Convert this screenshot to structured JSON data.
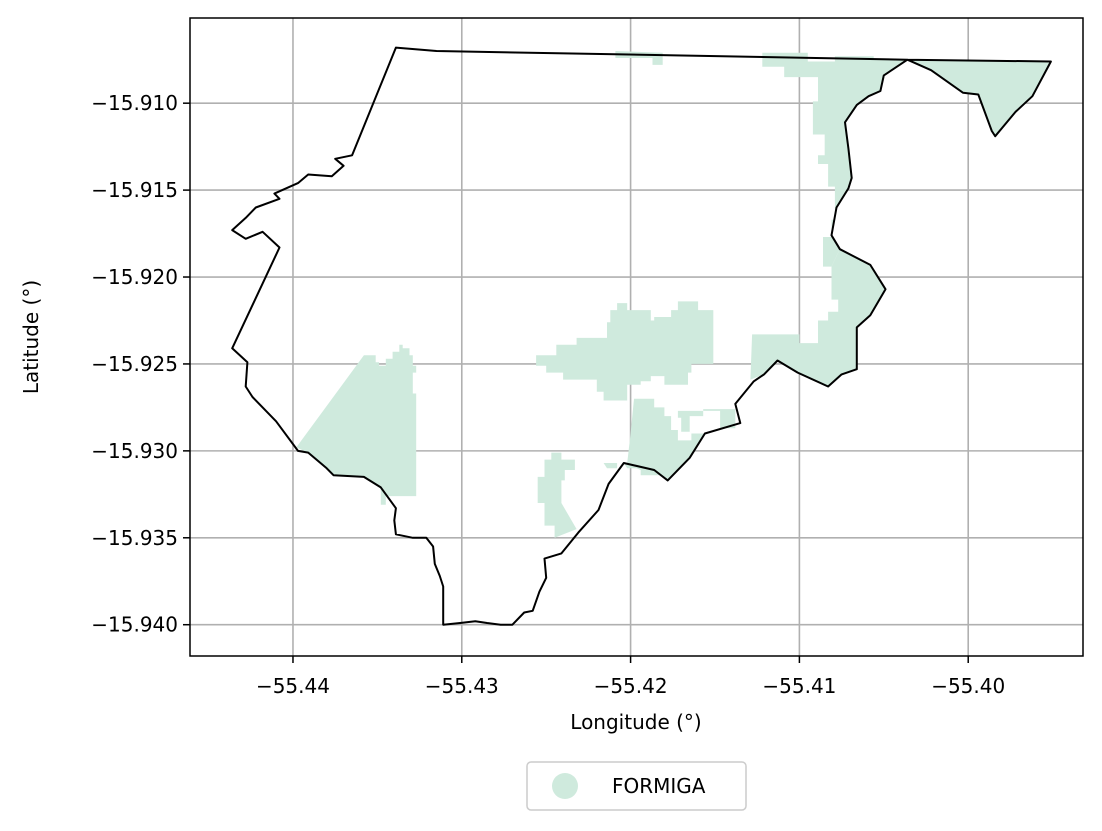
{
  "chart_data": {
    "type": "map",
    "xlabel": "Longitude (°)",
    "ylabel": "Latitude (°)",
    "xlim": [
      -55.4461,
      -55.3932
    ],
    "ylim": [
      -15.9418,
      -15.9051
    ],
    "grid": true,
    "x_ticks": [
      {
        "value": -55.44,
        "label": "−55.44"
      },
      {
        "value": -55.43,
        "label": "−55.43"
      },
      {
        "value": -55.42,
        "label": "−55.42"
      },
      {
        "value": -55.41,
        "label": "−55.41"
      },
      {
        "value": -55.4,
        "label": "−55.40"
      }
    ],
    "y_ticks": [
      {
        "value": -15.91,
        "label": "−15.910"
      },
      {
        "value": -15.915,
        "label": "−15.915"
      },
      {
        "value": -15.92,
        "label": "−15.920"
      },
      {
        "value": -15.925,
        "label": "−15.925"
      },
      {
        "value": -15.93,
        "label": "−15.930"
      },
      {
        "value": -15.935,
        "label": "−15.935"
      },
      {
        "value": -15.94,
        "label": "−15.940"
      }
    ],
    "legend": {
      "placement": "bottom-center",
      "entries": [
        {
          "label": "FORMIGA",
          "color": "#cfeadd"
        }
      ]
    },
    "fill_color": "#cfeadd",
    "boundary_color": "#000000",
    "boundary": [
      [
        -55.4339,
        -15.9068
      ],
      [
        -55.4315,
        -15.907
      ],
      [
        -55.4036,
        -15.9075
      ],
      [
        -55.3951,
        -15.9076
      ],
      [
        -55.3962,
        -15.9096
      ],
      [
        -55.3972,
        -15.9105
      ],
      [
        -55.3984,
        -15.9119
      ],
      [
        -55.3986,
        -15.9116
      ],
      [
        -55.3994,
        -15.9095
      ],
      [
        -55.4003,
        -15.9094
      ],
      [
        -55.4022,
        -15.9081
      ],
      [
        -55.4036,
        -15.9075
      ],
      [
        -55.405,
        -15.9084
      ],
      [
        -55.4052,
        -15.9093
      ],
      [
        -55.4059,
        -15.9096
      ],
      [
        -55.4066,
        -15.9101
      ],
      [
        -55.4073,
        -15.9111
      ],
      [
        -55.4071,
        -15.9126
      ],
      [
        -55.4069,
        -15.9143
      ],
      [
        -55.4071,
        -15.9149
      ],
      [
        -55.4078,
        -15.916
      ],
      [
        -55.4081,
        -15.9176
      ],
      [
        -55.4076,
        -15.9184
      ],
      [
        -55.4058,
        -15.9193
      ],
      [
        -55.4049,
        -15.9207
      ],
      [
        -55.4058,
        -15.9222
      ],
      [
        -55.4066,
        -15.9229
      ],
      [
        -55.4066,
        -15.9253
      ],
      [
        -55.4075,
        -15.9256
      ],
      [
        -55.4083,
        -15.9263
      ],
      [
        -55.4101,
        -15.9255
      ],
      [
        -55.4113,
        -15.9248
      ],
      [
        -55.4121,
        -15.9256
      ],
      [
        -55.4127,
        -15.926
      ],
      [
        -55.4138,
        -15.9273
      ],
      [
        -55.4135,
        -15.9284
      ],
      [
        -55.4156,
        -15.929
      ],
      [
        -55.4165,
        -15.9304
      ],
      [
        -55.4178,
        -15.9317
      ],
      [
        -55.4186,
        -15.9311
      ],
      [
        -55.4204,
        -15.9307
      ],
      [
        -55.4213,
        -15.9319
      ],
      [
        -55.4219,
        -15.9334
      ],
      [
        -55.4231,
        -15.9347
      ],
      [
        -55.4241,
        -15.9359
      ],
      [
        -55.4251,
        -15.9362
      ],
      [
        -55.425,
        -15.9373
      ],
      [
        -55.4254,
        -15.9381
      ],
      [
        -55.4258,
        -15.9392
      ],
      [
        -55.4263,
        -15.9393
      ],
      [
        -55.427,
        -15.94
      ],
      [
        -55.4277,
        -15.94
      ],
      [
        -55.4285,
        -15.9399
      ],
      [
        -55.4292,
        -15.9398
      ],
      [
        -55.4301,
        -15.9399
      ],
      [
        -55.4311,
        -15.94
      ],
      [
        -55.4311,
        -15.939
      ],
      [
        -55.4311,
        -15.9378
      ],
      [
        -55.4313,
        -15.9372
      ],
      [
        -55.4316,
        -15.9365
      ],
      [
        -55.4317,
        -15.9355
      ],
      [
        -55.4321,
        -15.935
      ],
      [
        -55.4329,
        -15.935
      ],
      [
        -55.4339,
        -15.9348
      ],
      [
        -55.434,
        -15.934
      ],
      [
        -55.4339,
        -15.9333
      ],
      [
        -55.4348,
        -15.9321
      ],
      [
        -55.4358,
        -15.9315
      ],
      [
        -55.4376,
        -15.9314
      ],
      [
        -55.438,
        -15.931
      ],
      [
        -55.4391,
        -15.9301
      ],
      [
        -55.4397,
        -15.93
      ],
      [
        -55.441,
        -15.9283
      ],
      [
        -55.4424,
        -15.9269
      ],
      [
        -55.4428,
        -15.9263
      ],
      [
        -55.4427,
        -15.9249
      ],
      [
        -55.4436,
        -15.9241
      ],
      [
        -55.4408,
        -15.9183
      ],
      [
        -55.4418,
        -15.9174
      ],
      [
        -55.4428,
        -15.9178
      ],
      [
        -55.4436,
        -15.9173
      ],
      [
        -55.4428,
        -15.9166
      ],
      [
        -55.4422,
        -15.916
      ],
      [
        -55.4408,
        -15.9155
      ],
      [
        -55.4411,
        -15.9152
      ],
      [
        -55.4397,
        -15.9146
      ],
      [
        -55.4391,
        -15.9141
      ],
      [
        -55.4377,
        -15.9142
      ],
      [
        -55.437,
        -15.9136
      ],
      [
        -55.4375,
        -15.9132
      ],
      [
        -55.4365,
        -15.913
      ],
      [
        -55.4339,
        -15.9068
      ]
    ],
    "regions": [
      [
        [
          -55.4398,
          -15.9298
        ],
        [
          -55.4358,
          -15.9245
        ],
        [
          -55.4351,
          -15.9245
        ],
        [
          -55.4351,
          -15.9249
        ],
        [
          -55.4349,
          -15.9249
        ],
        [
          -55.4349,
          -15.9251
        ],
        [
          -55.4345,
          -15.9251
        ],
        [
          -55.4345,
          -15.9247
        ],
        [
          -55.4341,
          -15.9247
        ],
        [
          -55.4341,
          -15.9243
        ],
        [
          -55.4337,
          -15.9243
        ],
        [
          -55.4337,
          -15.9239
        ],
        [
          -55.4335,
          -15.9239
        ],
        [
          -55.4335,
          -15.9241
        ],
        [
          -55.4331,
          -15.9241
        ],
        [
          -55.4331,
          -15.9245
        ],
        [
          -55.4329,
          -15.9245
        ],
        [
          -55.4329,
          -15.9251
        ],
        [
          -55.4327,
          -15.9251
        ],
        [
          -55.4327,
          -15.9255
        ],
        [
          -55.4329,
          -15.9255
        ],
        [
          -55.4329,
          -15.9267
        ],
        [
          -55.4327,
          -15.9267
        ],
        [
          -55.4327,
          -15.9326
        ],
        [
          -55.4345,
          -15.9326
        ],
        [
          -55.4345,
          -15.9331
        ],
        [
          -55.4348,
          -15.9331
        ],
        [
          -55.4348,
          -15.9321
        ],
        [
          -55.4358,
          -15.9315
        ],
        [
          -55.4376,
          -15.9314
        ],
        [
          -55.4391,
          -15.9301
        ],
        [
          -55.4398,
          -15.9298
        ]
      ],
      [
        [
          -55.4204,
          -15.9307
        ],
        [
          -55.4202,
          -15.931
        ],
        [
          -55.4196,
          -15.931
        ],
        [
          -55.4196,
          -15.9307
        ],
        [
          -55.4204,
          -15.9307
        ]
      ],
      [
        [
          -55.4216,
          -15.9307
        ],
        [
          -55.4214,
          -15.931
        ],
        [
          -55.4208,
          -15.931
        ],
        [
          -55.4208,
          -15.9307
        ],
        [
          -55.4216,
          -15.9307
        ]
      ],
      [
        [
          -55.4208,
          -15.9307
        ],
        [
          -55.4202,
          -15.9307
        ],
        [
          -55.42,
          -15.929
        ],
        [
          -55.4198,
          -15.927
        ],
        [
          -55.4186,
          -15.927
        ],
        [
          -55.4186,
          -15.9275
        ],
        [
          -55.418,
          -15.9275
        ],
        [
          -55.418,
          -15.928
        ],
        [
          -55.4176,
          -15.928
        ],
        [
          -55.4176,
          -15.9288
        ],
        [
          -55.4172,
          -15.9288
        ],
        [
          -55.4172,
          -15.9294
        ],
        [
          -55.4164,
          -15.9294
        ],
        [
          -55.4164,
          -15.929
        ],
        [
          -55.4156,
          -15.929
        ],
        [
          -55.4165,
          -15.9304
        ],
        [
          -55.4178,
          -15.9317
        ],
        [
          -55.4186,
          -15.9311
        ],
        [
          -55.418,
          -15.9311
        ],
        [
          -55.418,
          -15.9314
        ],
        [
          -55.4194,
          -15.9314
        ],
        [
          -55.4194,
          -15.9311
        ],
        [
          -55.4204,
          -15.9307
        ],
        [
          -55.4208,
          -15.9307
        ]
      ],
      [
        [
          -55.4232,
          -15.9345
        ],
        [
          -55.4241,
          -15.933
        ],
        [
          -55.4241,
          -15.9317
        ],
        [
          -55.4239,
          -15.9317
        ],
        [
          -55.4239,
          -15.9311
        ],
        [
          -55.4233,
          -15.9311
        ],
        [
          -55.4233,
          -15.9305
        ],
        [
          -55.4241,
          -15.9305
        ],
        [
          -55.4241,
          -15.9301
        ],
        [
          -55.4247,
          -15.9301
        ],
        [
          -55.4247,
          -15.9305
        ],
        [
          -55.4251,
          -15.9305
        ],
        [
          -55.4251,
          -15.9315
        ],
        [
          -55.4255,
          -15.9315
        ],
        [
          -55.4255,
          -15.933
        ],
        [
          -55.4251,
          -15.933
        ],
        [
          -55.4251,
          -15.9343
        ],
        [
          -55.4245,
          -15.9343
        ],
        [
          -55.4245,
          -15.935
        ],
        [
          -55.4232,
          -15.9345
        ]
      ],
      [
        [
          -55.417,
          -15.9289
        ],
        [
          -55.417,
          -15.9281
        ],
        [
          -55.4172,
          -15.9281
        ],
        [
          -55.4172,
          -15.9277
        ],
        [
          -55.4157,
          -15.9277
        ],
        [
          -55.4147,
          -15.9277
        ],
        [
          -55.4147,
          -15.9287
        ],
        [
          -55.4138,
          -15.9287
        ],
        [
          -55.4138,
          -15.9276
        ],
        [
          -55.4157,
          -15.9276
        ],
        [
          -55.4157,
          -15.928
        ],
        [
          -55.4165,
          -15.928
        ],
        [
          -55.4165,
          -15.9289
        ],
        [
          -55.417,
          -15.9289
        ]
      ],
      [
        [
          -55.4256,
          -15.9245
        ],
        [
          -55.4244,
          -15.9245
        ],
        [
          -55.4244,
          -15.9239
        ],
        [
          -55.4232,
          -15.9239
        ],
        [
          -55.4232,
          -15.9235
        ],
        [
          -55.4214,
          -15.9235
        ],
        [
          -55.4214,
          -15.9226
        ],
        [
          -55.4212,
          -15.9226
        ],
        [
          -55.4212,
          -15.9219
        ],
        [
          -55.4208,
          -15.9219
        ],
        [
          -55.4208,
          -15.9215
        ],
        [
          -55.4202,
          -15.9215
        ],
        [
          -55.4202,
          -15.9219
        ],
        [
          -55.4188,
          -15.9219
        ],
        [
          -55.4188,
          -15.9225
        ],
        [
          -55.4186,
          -15.9225
        ],
        [
          -55.4186,
          -15.9223
        ],
        [
          -55.4176,
          -15.9223
        ],
        [
          -55.4176,
          -15.9219
        ],
        [
          -55.4172,
          -15.9219
        ],
        [
          -55.4172,
          -15.9214
        ],
        [
          -55.416,
          -15.9214
        ],
        [
          -55.416,
          -15.9219
        ],
        [
          -55.4151,
          -15.9219
        ],
        [
          -55.4151,
          -15.925
        ],
        [
          -55.4164,
          -15.925
        ],
        [
          -55.4164,
          -15.9255
        ],
        [
          -55.4166,
          -15.9255
        ],
        [
          -55.4166,
          -15.9262
        ],
        [
          -55.418,
          -15.9262
        ],
        [
          -55.418,
          -15.9257
        ],
        [
          -55.4188,
          -15.9257
        ],
        [
          -55.4188,
          -15.926
        ],
        [
          -55.4194,
          -15.926
        ],
        [
          -55.4194,
          -15.9262
        ],
        [
          -55.4202,
          -15.9262
        ],
        [
          -55.4202,
          -15.9271
        ],
        [
          -55.4216,
          -15.9271
        ],
        [
          -55.4216,
          -15.9266
        ],
        [
          -55.422,
          -15.9266
        ],
        [
          -55.422,
          -15.9259
        ],
        [
          -55.424,
          -15.9259
        ],
        [
          -55.424,
          -15.9255
        ],
        [
          -55.425,
          -15.9255
        ],
        [
          -55.425,
          -15.9251
        ],
        [
          -55.4256,
          -15.9251
        ],
        [
          -55.4256,
          -15.9245
        ]
      ],
      [
        [
          -55.4129,
          -15.9259
        ],
        [
          -55.4128,
          -15.9233
        ],
        [
          -55.41,
          -15.9233
        ],
        [
          -55.41,
          -15.9238
        ],
        [
          -55.4089,
          -15.9238
        ],
        [
          -55.4089,
          -15.9225
        ],
        [
          -55.4083,
          -15.9225
        ],
        [
          -55.4083,
          -15.922
        ],
        [
          -55.4077,
          -15.922
        ],
        [
          -55.4077,
          -15.9213
        ],
        [
          -55.4081,
          -15.9213
        ],
        [
          -55.4081,
          -15.9194
        ],
        [
          -55.4076,
          -15.9184
        ],
        [
          -55.4058,
          -15.9193
        ],
        [
          -55.4049,
          -15.9207
        ],
        [
          -55.4058,
          -15.9222
        ],
        [
          -55.4066,
          -15.9229
        ],
        [
          -55.4066,
          -15.9253
        ],
        [
          -55.4075,
          -15.9256
        ],
        [
          -55.4083,
          -15.9263
        ],
        [
          -55.4101,
          -15.9255
        ],
        [
          -55.4113,
          -15.9248
        ],
        [
          -55.4121,
          -15.9256
        ],
        [
          -55.4129,
          -15.9259
        ]
      ],
      [
        [
          -55.4076,
          -15.9184
        ],
        [
          -55.4081,
          -15.9176
        ],
        [
          -55.4078,
          -15.916
        ],
        [
          -55.4071,
          -15.9149
        ],
        [
          -55.4069,
          -15.9143
        ],
        [
          -55.4071,
          -15.9126
        ],
        [
          -55.4073,
          -15.9111
        ],
        [
          -55.4066,
          -15.9101
        ],
        [
          -55.4059,
          -15.9096
        ],
        [
          -55.4052,
          -15.9093
        ],
        [
          -55.405,
          -15.9084
        ],
        [
          -55.4036,
          -15.9075
        ],
        [
          -55.4056,
          -15.9075
        ],
        [
          -55.4056,
          -15.9073
        ],
        [
          -55.4079,
          -15.9073
        ],
        [
          -55.4079,
          -15.9076
        ],
        [
          -55.4095,
          -15.9076
        ],
        [
          -55.4095,
          -15.9071
        ],
        [
          -55.4122,
          -15.9071
        ],
        [
          -55.4122,
          -15.9079
        ],
        [
          -55.4109,
          -15.9079
        ],
        [
          -55.4109,
          -15.9085
        ],
        [
          -55.4089,
          -15.9085
        ],
        [
          -55.4089,
          -15.9099
        ],
        [
          -55.4092,
          -15.9099
        ],
        [
          -55.4092,
          -15.9118
        ],
        [
          -55.4085,
          -15.9118
        ],
        [
          -55.4085,
          -15.913
        ],
        [
          -55.4089,
          -15.913
        ],
        [
          -55.4089,
          -15.9135
        ],
        [
          -55.4083,
          -15.9135
        ],
        [
          -55.4083,
          -15.9148
        ],
        [
          -55.4079,
          -15.9148
        ],
        [
          -55.4079,
          -15.9167
        ],
        [
          -55.4081,
          -15.9167
        ],
        [
          -55.4081,
          -15.9177
        ],
        [
          -55.4086,
          -15.9177
        ],
        [
          -55.4086,
          -15.9194
        ],
        [
          -55.4081,
          -15.9194
        ],
        [
          -55.4076,
          -15.9184
        ]
      ],
      [
        [
          -55.4036,
          -15.9075
        ],
        [
          -55.3951,
          -15.9076
        ],
        [
          -55.3962,
          -15.9096
        ],
        [
          -55.3972,
          -15.9105
        ],
        [
          -55.3984,
          -15.9119
        ],
        [
          -55.3986,
          -15.9116
        ],
        [
          -55.3994,
          -15.9095
        ],
        [
          -55.4003,
          -15.9094
        ],
        [
          -55.4022,
          -15.9081
        ],
        [
          -55.4036,
          -15.9075
        ]
      ],
      [
        [
          -55.4209,
          -15.907
        ],
        [
          -55.4181,
          -15.9071
        ],
        [
          -55.4181,
          -15.9078
        ],
        [
          -55.4187,
          -15.9078
        ],
        [
          -55.4187,
          -15.9074
        ],
        [
          -55.4209,
          -15.9074
        ],
        [
          -55.4209,
          -15.907
        ]
      ]
    ]
  }
}
